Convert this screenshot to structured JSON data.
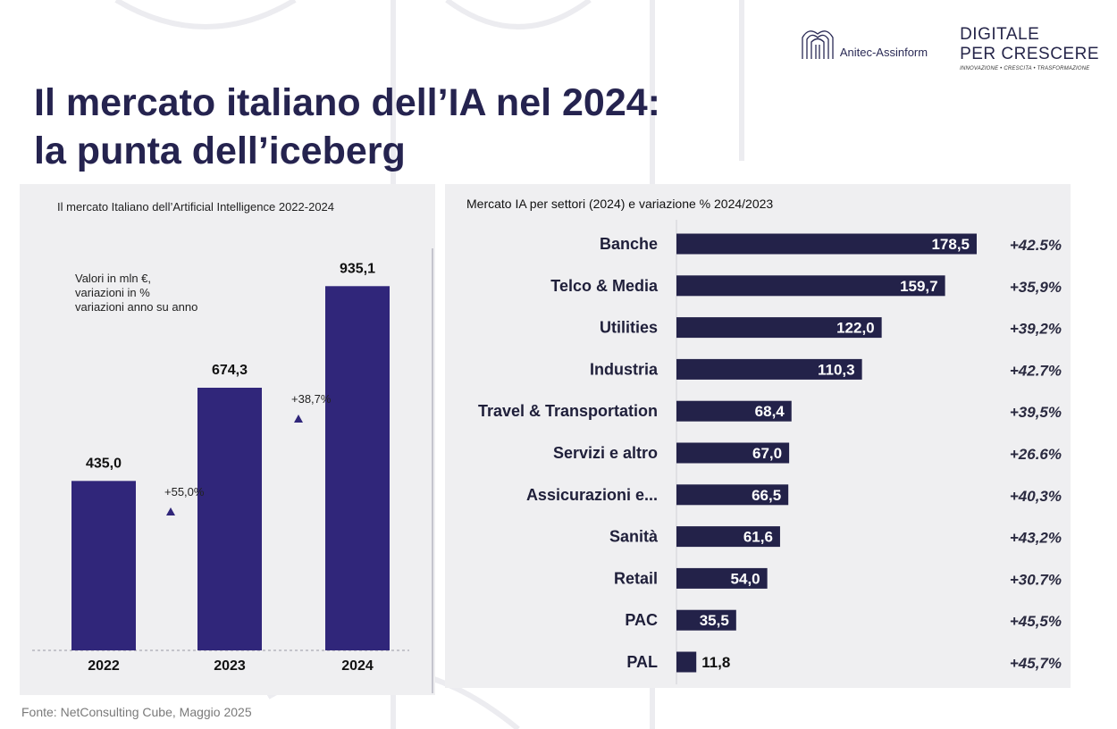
{
  "header": {
    "logo_anitec": "Anitec-Assinform",
    "logo_digitale_l1": "DIGITALE",
    "logo_digitale_l2": "PER CRESCERE",
    "logo_digitale_tagline": "INNOVAZIONE • CRESCITA • TRASFORMAZIONE",
    "title_line1": "Il mercato italiano dell’IA nel 2024:",
    "title_line2": "la punta dell’iceberg"
  },
  "colors": {
    "title": "#25234f",
    "left_bar": "#30267a",
    "right_bar": "#232249",
    "panel_bg": "#efeff1"
  },
  "footer": {
    "source": "Fonte: NetConsulting Cube, Maggio 2025"
  },
  "chart_data": [
    {
      "type": "bar",
      "title": "Il mercato Italiano dell’Artificial Intelligence 2022-2024",
      "note": [
        "Valori in mln €,",
        "variazioni in %",
        "variazioni anno su anno"
      ],
      "categories": [
        "2022",
        "2023",
        "2024"
      ],
      "values": [
        435.0,
        674.3,
        935.1
      ],
      "value_labels": [
        "435,0",
        "674,3",
        "935,1"
      ],
      "growth_labels": [
        "+55,0%",
        "+38,7%"
      ],
      "ylim": [
        0,
        1000
      ]
    },
    {
      "type": "bar",
      "orientation": "horizontal",
      "title": "Mercato IA per settori (2024) e variazione % 2024/2023",
      "categories": [
        "Banche",
        "Telco & Media",
        "Utilities",
        "Industria",
        "Travel & Transportation",
        "Servizi e altro",
        "Assicurazioni e...",
        "Sanità",
        "Retail",
        "PAC",
        "PAL"
      ],
      "values": [
        178.5,
        159.7,
        122.0,
        110.3,
        68.4,
        67.0,
        66.5,
        61.6,
        54.0,
        35.5,
        11.8
      ],
      "value_labels": [
        "178,5",
        "159,7",
        "122,0",
        "110,3",
        "68,4",
        "67,0",
        "66,5",
        "61,6",
        "54,0",
        "35,5",
        "11,8"
      ],
      "change_labels": [
        "+42.5%",
        "+35,9%",
        "+39,2%",
        "+42.7%",
        "+39,5%",
        "+26.6%",
        "+40,3%",
        "+43,2%",
        "+30.7%",
        "+45,5%",
        "+45,7%"
      ],
      "xlim": [
        0,
        180
      ]
    }
  ]
}
